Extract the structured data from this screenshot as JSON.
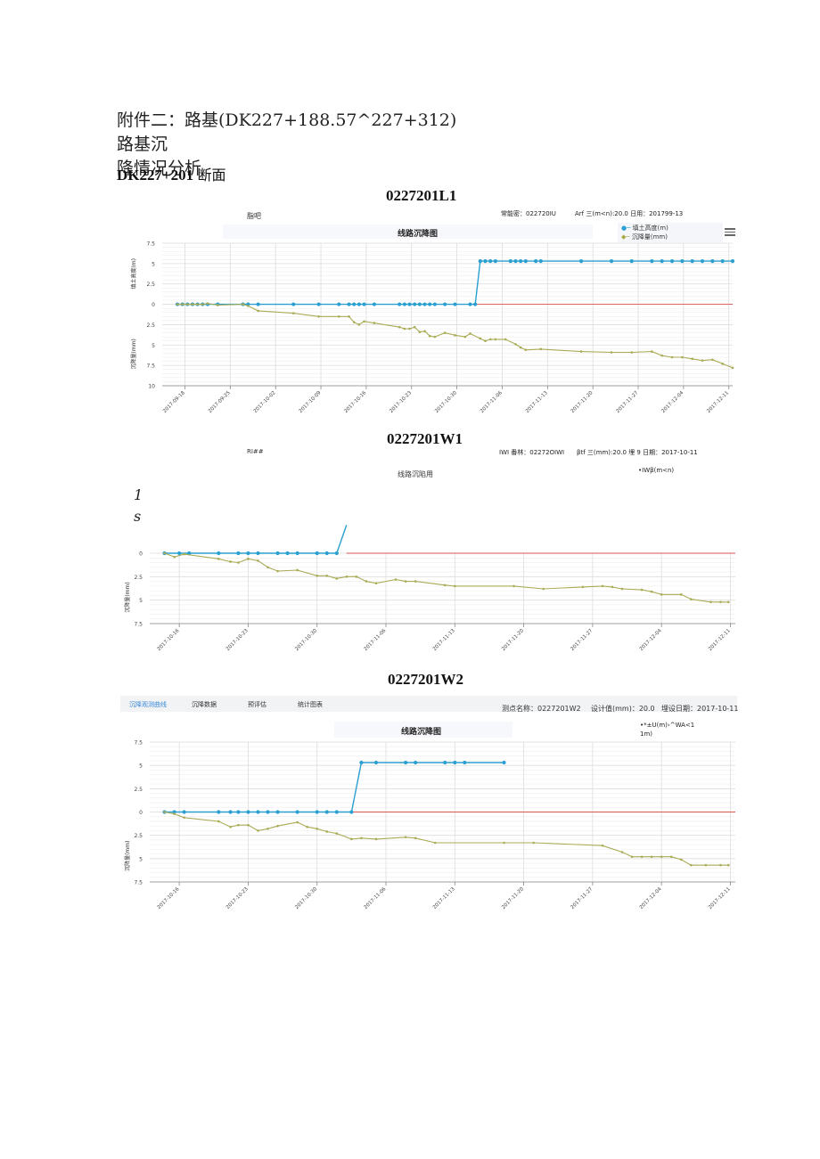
{
  "document": {
    "title_line1": "附件二：路基(DK227+188.57^227+312)路基沉",
    "title_line2": "降情况分析",
    "section": {
      "code": "DK227+201",
      "label": "断面"
    }
  },
  "charts_meta": [
    {
      "name": "0227201L1",
      "left_label": "脂吧",
      "meta_point": "常能密：022720IU",
      "meta_design": "Arf 三(m<n):20.0 日用：201799-13",
      "plot_title": "线路沉降图",
      "legend": [
        "填土高度(m)",
        "沉降量(mm)"
      ],
      "y_label_top": "填土高度(m)",
      "y_label_bottom": "沉降量(mm)"
    },
    {
      "name": "0227201W1",
      "left_label": "RI##",
      "meta_point": "IWI 番林：02272OIWI",
      "meta_design": "βtf 三(mm):20.0 埋 9 日期：2017-10-11",
      "plot_title": "线路沉陷用",
      "legend": [
        "•IWβ(m<n)"
      ],
      "note_line1": "1",
      "note_line2": "s",
      "y_label_bottom": "沉降量(mm)"
    },
    {
      "name": "0227201W2",
      "tabs": [
        "沉降观测曲线",
        "沉降数据",
        "预评估",
        "统计图表"
      ],
      "active_tab": 0,
      "meta_point": "测点名称：0227201W2",
      "meta_design": "设计值(mm)：20.0",
      "meta_date": "埋设日期：2017-10-11",
      "plot_title": "线路沉降图",
      "legend_line1": "•*±U(m)›^WA<1",
      "legend_line2": "1m)",
      "y_label_bottom": "沉降量(mm)"
    }
  ],
  "colors": {
    "fill_height": "#2a9fd0",
    "settlement": "#a9ab55",
    "zero_line": "#d9534f",
    "grid": "#dddddd",
    "grid_minor": "#eeeeee",
    "axis_text": "#444444"
  },
  "chart_data": [
    {
      "type": "line",
      "title": "线路沉降图",
      "subtitle": "0227201L1",
      "xlabel": "",
      "ylabel": "填土高度(m) / 沉降量(mm)",
      "x_ticks": [
        "2017-09-18",
        "2017-09-25",
        "2017-10-02",
        "2017-10-09",
        "2017-10-16",
        "2017-10-23",
        "2017-10-30",
        "2017-11-06",
        "2017-11-13",
        "2017-11-20",
        "2017-11-27",
        "2017-12-04",
        "2017-12-11"
      ],
      "x_range_days": [
        -1,
        84
      ],
      "y_ticks": [
        "7.5",
        "5",
        "2.5",
        "0",
        "2.5",
        "5",
        "7.5",
        "10"
      ],
      "ylim": [
        -10,
        7.5
      ],
      "legend": [
        "填土高度(m)",
        "沉降量(mm)"
      ],
      "legend_position": "top-right",
      "series": [
        {
          "name": "填土高度(m)",
          "x_days": [
            0,
            1,
            2,
            3,
            4,
            5,
            6,
            8,
            13,
            14,
            16,
            23,
            28,
            32,
            34,
            35,
            36,
            37,
            39,
            44,
            45,
            46,
            47,
            48,
            49,
            50,
            51,
            53,
            55,
            58,
            59,
            60,
            61,
            62,
            63,
            66,
            67,
            68,
            69,
            71,
            72,
            80,
            86,
            90,
            94,
            96,
            98,
            100,
            102,
            104,
            106,
            108,
            110
          ],
          "values": [
            0,
            0,
            0,
            0,
            0,
            0,
            0,
            0,
            0,
            0,
            0,
            0,
            0,
            0,
            0,
            0,
            0,
            0,
            0,
            0,
            0,
            0,
            0,
            0,
            0,
            0,
            0,
            0,
            0,
            0,
            0,
            5.3,
            5.3,
            5.3,
            5.3,
            5.3,
            5.3,
            5.3,
            5.3,
            5.3,
            5.3,
            5.3,
            5.3,
            5.3,
            5.3,
            5.3,
            5.3,
            5.3,
            5.3,
            5.3,
            5.3,
            5.3,
            5.3
          ]
        },
        {
          "name": "沉降量(mm)",
          "x_days": [
            0,
            1,
            2,
            3,
            4,
            5,
            6,
            8,
            13,
            14,
            16,
            23,
            28,
            32,
            34,
            35,
            36,
            37,
            39,
            44,
            45,
            46,
            47,
            48,
            49,
            50,
            51,
            53,
            55,
            57,
            58,
            60,
            61,
            62,
            63,
            65,
            67,
            68,
            69,
            72,
            80,
            86,
            90,
            94,
            96,
            98,
            100,
            102,
            104,
            106,
            108,
            110
          ],
          "values": [
            0,
            0,
            0,
            0,
            0,
            0,
            0.1,
            -0.1,
            0,
            -0.2,
            -0.8,
            -1.1,
            -1.5,
            -1.5,
            -1.5,
            -2.2,
            -2.5,
            -2.1,
            -2.3,
            -2.8,
            -3.0,
            -3.0,
            -2.8,
            -3.4,
            -3.3,
            -3.9,
            -4.0,
            -3.5,
            -3.8,
            -4.0,
            -3.6,
            -4.2,
            -4.5,
            -4.3,
            -4.3,
            -4.3,
            -4.9,
            -5.3,
            -5.6,
            -5.5,
            -5.8,
            -5.9,
            -5.9,
            -5.8,
            -6.3,
            -6.5,
            -6.5,
            -6.7,
            -6.9,
            -6.8,
            -7.3,
            -7.8
          ]
        }
      ]
    },
    {
      "type": "line",
      "title": "线路沉陷用",
      "subtitle": "0227201W1",
      "xlabel": "",
      "ylabel": "沉降量(mm)",
      "x_ticks": [
        "2017-10-16",
        "2017-10-23",
        "2017-10-30",
        "2017-11-06",
        "2017-11-13",
        "2017-11-20",
        "2017-11-27",
        "2017-12-04",
        "2017-12-11"
      ],
      "y_ticks": [
        "0",
        "2.5",
        "5",
        "7.5"
      ],
      "ylim": [
        -7.5,
        0
      ],
      "series": [
        {
          "name": "填土高度(m)",
          "x_days": [
            -1.5,
            0,
            1,
            4,
            6,
            7,
            8,
            10,
            11,
            12,
            14,
            15,
            16,
            17
          ],
          "values": [
            0,
            0,
            0,
            0,
            0,
            0,
            0,
            0,
            0,
            0,
            0,
            0,
            0,
            3
          ]
        },
        {
          "name": "沉降量(mm)",
          "x_days": [
            -1.5,
            -0.5,
            0.5,
            4,
            5.2,
            6,
            7,
            8,
            9,
            10,
            12,
            14,
            15,
            16,
            17,
            18,
            19,
            20,
            22,
            23,
            24,
            27,
            28,
            34,
            37,
            41,
            43,
            44,
            45,
            47,
            48,
            49,
            51,
            52,
            54,
            55,
            55.8
          ],
          "values": [
            0,
            -0.4,
            -0.1,
            -0.6,
            -0.9,
            -1.0,
            -0.6,
            -0.8,
            -1.5,
            -1.9,
            -1.8,
            -2.4,
            -2.4,
            -2.7,
            -2.5,
            -2.5,
            -3.0,
            -3.2,
            -2.8,
            -3.0,
            -3.0,
            -3.4,
            -3.5,
            -3.5,
            -3.8,
            -3.6,
            -3.5,
            -3.6,
            -3.8,
            -3.9,
            -4.1,
            -4.4,
            -4.4,
            -4.9,
            -5.2,
            -5.2,
            -5.2
          ]
        }
      ]
    },
    {
      "type": "line",
      "title": "线路沉降图",
      "subtitle": "0227201W2",
      "xlabel": "",
      "ylabel": "沉降量(mm)",
      "x_ticks": [
        "2017-10-16",
        "2017-10-23",
        "2017-10-30",
        "2017-11-06",
        "2017-11-13",
        "2017-11-20",
        "2017-11-27",
        "2017-12-04",
        "2017-12-11"
      ],
      "y_ticks": [
        "7.5",
        "5",
        "2.5",
        "0",
        "2.5",
        "5",
        "7.5"
      ],
      "ylim": [
        -7.5,
        7.5
      ],
      "series": [
        {
          "name": "填土高度(m)",
          "x_days": [
            -1.5,
            -0.5,
            0.5,
            4,
            5.2,
            6,
            7,
            8,
            9,
            10,
            12,
            14,
            15,
            16,
            17.5,
            18.5,
            20,
            23,
            24,
            27,
            28,
            29,
            33
          ],
          "values": [
            0,
            0,
            0,
            0,
            0,
            0,
            0,
            0,
            0,
            0,
            0,
            0,
            0,
            0,
            0,
            5.3,
            5.3,
            5.3,
            5.3,
            5.3,
            5.3,
            5.3,
            5.3
          ]
        },
        {
          "name": "沉降量(mm)",
          "x_days": [
            -1.5,
            -0.5,
            0.5,
            4,
            5.2,
            6,
            7,
            8,
            9,
            10,
            12,
            13,
            14,
            15,
            16,
            17.5,
            18.5,
            20,
            23,
            24,
            26,
            33,
            36,
            43,
            45,
            46,
            47,
            48,
            49,
            50,
            51,
            52,
            53.5,
            55,
            55.8
          ],
          "values": [
            0,
            -0.2,
            -0.6,
            -1.0,
            -1.6,
            -1.4,
            -1.4,
            -2.0,
            -1.8,
            -1.5,
            -1.1,
            -1.6,
            -1.8,
            -2.1,
            -2.3,
            -2.9,
            -2.8,
            -2.9,
            -2.7,
            -2.8,
            -3.3,
            -3.3,
            -3.3,
            -3.6,
            -4.3,
            -4.8,
            -4.8,
            -4.8,
            -4.8,
            -4.8,
            -5.1,
            -5.7,
            -5.7,
            -5.7,
            -5.7
          ]
        }
      ]
    }
  ]
}
